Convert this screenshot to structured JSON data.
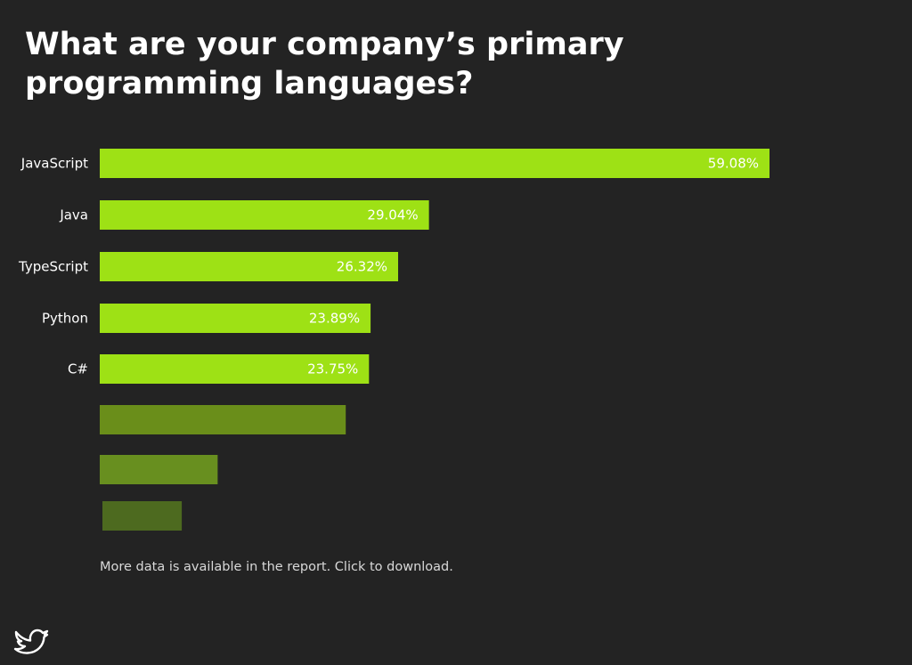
{
  "title": "What are your company’s primary programming languages?",
  "footnote": "More data is available in the report. Click to download.",
  "share_icon": "twitter-bird-icon",
  "colors": {
    "background": "#232323",
    "highlight": "#9ee115",
    "muted": [
      "#6a8e1a",
      "#688f1f",
      "#4d6a1f"
    ],
    "text": "#ffffff"
  },
  "chart_data": {
    "type": "bar",
    "orientation": "horizontal",
    "categories": [
      "JavaScript",
      "Java",
      "TypeScript",
      "Python",
      "C#",
      "",
      "",
      ""
    ],
    "values": [
      59.08,
      29.04,
      26.32,
      23.89,
      23.75,
      21.7,
      10.4,
      7.0
    ],
    "value_labels": [
      "59.08%",
      "29.04%",
      "26.32%",
      "23.89%",
      "23.75%",
      "",
      "",
      ""
    ],
    "unit": "%",
    "xlim": [
      0,
      60
    ],
    "grid": false,
    "legend": "none"
  }
}
